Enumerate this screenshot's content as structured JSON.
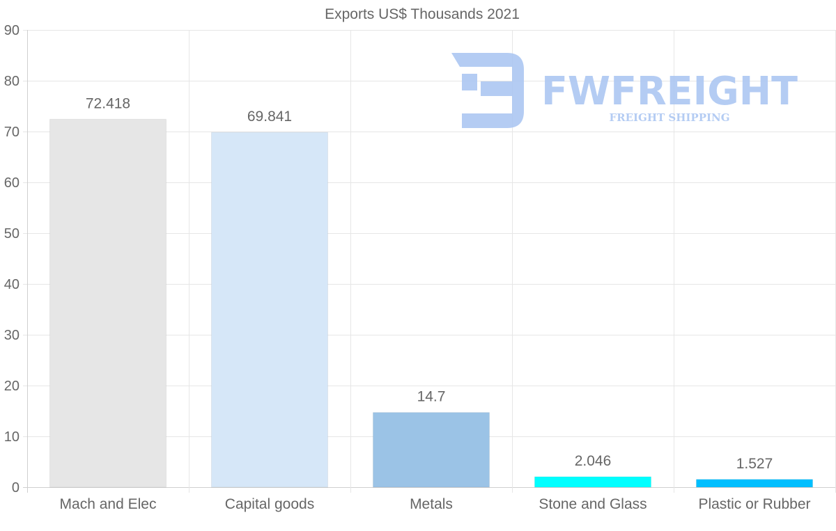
{
  "chart_data": {
    "type": "bar",
    "title": "Exports US$ Thousands 2021",
    "categories": [
      "Mach and Elec",
      "Capital goods",
      "Metals",
      "Stone and Glass",
      "Plastic or Rubber"
    ],
    "values": [
      72.418,
      69.841,
      14.7,
      2.046,
      1.527
    ],
    "value_labels": [
      "72.418",
      "69.841",
      "14.7",
      "2.046",
      "1.527"
    ],
    "colors": [
      "#e6e6e6",
      "#d6e7f8",
      "#9bc3e6",
      "#00ffff",
      "#00bfff"
    ],
    "ylim": [
      0,
      90
    ],
    "yticks": [
      0,
      10,
      20,
      30,
      40,
      50,
      60,
      70,
      80,
      90
    ],
    "xlabel": "",
    "ylabel": "",
    "grid": true
  },
  "watermark": {
    "brand": "FWFREIGHT",
    "tagline": "FREIGHT SHIPPING",
    "color": "#a8c4f2"
  }
}
